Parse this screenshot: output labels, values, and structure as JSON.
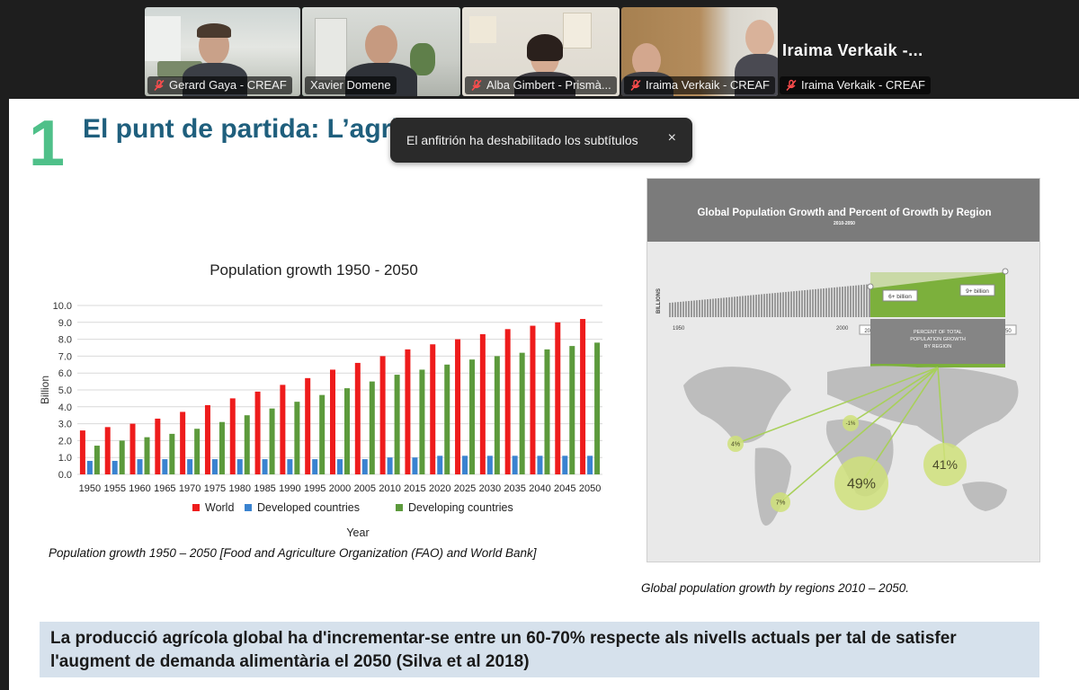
{
  "participants": [
    {
      "name": "Gerard Gaya - CREAF",
      "muted": true
    },
    {
      "name": "Xavier Domene",
      "muted": false,
      "active": true
    },
    {
      "name": "Alba Gimbert - Prismà...",
      "muted": true
    },
    {
      "name": "Iraima Verkaik - CREAF",
      "muted": true
    },
    {
      "name": "Iraima Verkaik - CREAF",
      "muted": true
    }
  ],
  "overflow_name": "Iraima  Verkaik  -...",
  "toast": {
    "text": "El anfitrión ha deshabilitado los subtítulos",
    "close": "×"
  },
  "slide": {
    "number": "1",
    "title": "El punt de partida: L’agricultura està en crisi",
    "chart_caption": "Population growth 1950 – 2050 [Food and Agriculture Organization (FAO) and World Bank]",
    "info_caption": "Global population growth by regions 2010 – 2050.",
    "banner": "La producció agrícola global ha d'incrementar-se entre un 60-70% respecte als nivells actuals per tal de satisfer l'augment de demanda alimentària el 2050 (Silva et al 2018)"
  },
  "chart_data": [
    {
      "type": "bar",
      "title": "Population growth 1950 - 2050",
      "xlabel": "Year",
      "ylabel": "Billion",
      "ylim": [
        0,
        10
      ],
      "yticks": [
        "0.0",
        "1.0",
        "2.0",
        "3.0",
        "4.0",
        "5.0",
        "6.0",
        "7.0",
        "8.0",
        "9.0",
        "10.0"
      ],
      "categories": [
        "1950",
        "1955",
        "1960",
        "1965",
        "1970",
        "1975",
        "1980",
        "1985",
        "1990",
        "1995",
        "2000",
        "2005",
        "2010",
        "2015",
        "2020",
        "2025",
        "2030",
        "2035",
        "2040",
        "2045",
        "2050"
      ],
      "series": [
        {
          "name": "World",
          "color": "#ee1c1c",
          "values": [
            2.6,
            2.8,
            3.0,
            3.3,
            3.7,
            4.1,
            4.5,
            4.9,
            5.3,
            5.7,
            6.2,
            6.6,
            7.0,
            7.4,
            7.7,
            8.0,
            8.3,
            8.6,
            8.8,
            9.0,
            9.2
          ]
        },
        {
          "name": "Developed countries",
          "color": "#3a83d0",
          "values": [
            0.8,
            0.8,
            0.9,
            0.9,
            0.9,
            0.9,
            0.9,
            0.9,
            0.9,
            0.9,
            0.9,
            0.9,
            1.0,
            1.0,
            1.1,
            1.1,
            1.1,
            1.1,
            1.1,
            1.1,
            1.1
          ]
        },
        {
          "name": "Developing countries",
          "color": "#5c9a3c",
          "values": [
            1.7,
            2.0,
            2.2,
            2.4,
            2.7,
            3.1,
            3.5,
            3.9,
            4.3,
            4.7,
            5.1,
            5.5,
            5.9,
            6.2,
            6.5,
            6.8,
            7.0,
            7.2,
            7.4,
            7.6,
            7.8
          ]
        }
      ],
      "grid": true,
      "legend": "bottom"
    },
    {
      "type": "area",
      "title": "Global Population Growth and Percent of Growth by Region",
      "subtitle": "2010-2050",
      "ylabel": "BILLIONS",
      "x_labels": [
        "1950",
        "2000",
        "2010",
        "2050"
      ],
      "callouts": [
        "6+ billion",
        "9+ billion"
      ],
      "box_text": "PERCENT OF TOTAL POPULATION GROWTH BY REGION",
      "regions": [
        {
          "label": "4%",
          "value": 4
        },
        {
          "label": "-1%",
          "value": -1
        },
        {
          "label": "7%",
          "value": 7
        },
        {
          "label": "49%",
          "value": 49
        },
        {
          "label": "41%",
          "value": 41
        }
      ]
    }
  ]
}
